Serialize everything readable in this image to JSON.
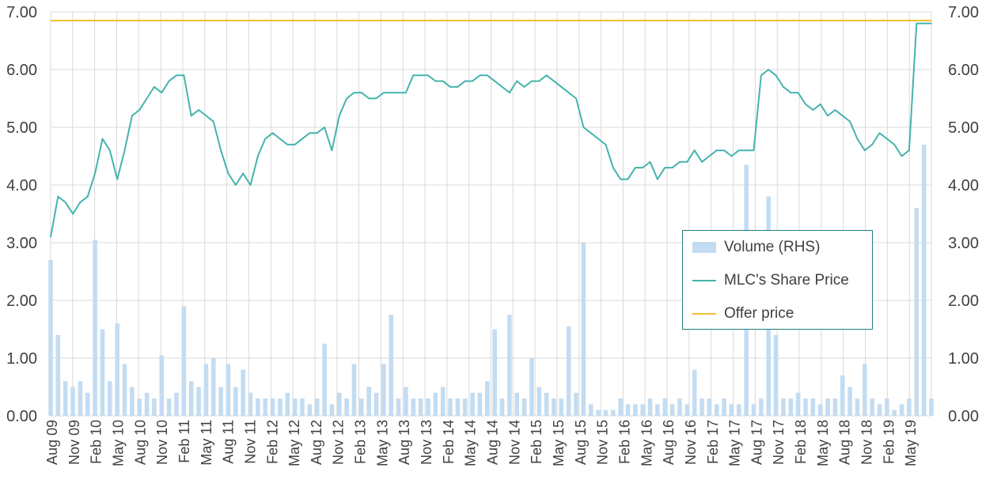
{
  "chart_data": {
    "type": "line",
    "title": "",
    "xlabel": "",
    "ylabel": "",
    "left_axis_ticks": [
      "0.00",
      "1.00",
      "2.00",
      "3.00",
      "4.00",
      "5.00",
      "6.00",
      "7.00"
    ],
    "right_axis_ticks": [
      "0.00",
      "1.00",
      "2.00",
      "3.00",
      "4.00",
      "5.00",
      "6.00",
      "7.00"
    ],
    "ylim": [
      0,
      7
    ],
    "x_tick_labels": [
      "Aug 09",
      "Nov 09",
      "Feb 10",
      "May 10",
      "Aug 10",
      "Nov 10",
      "Feb 11",
      "May 11",
      "Aug 11",
      "Nov 11",
      "Feb 12",
      "May 12",
      "Aug 12",
      "Nov 12",
      "Feb 13",
      "May 13",
      "Aug 13",
      "Nov 13",
      "Feb 14",
      "May 14",
      "Aug 14",
      "Nov 14",
      "Feb 15",
      "May 15",
      "Aug 15",
      "Nov 15",
      "Feb 16",
      "May 16",
      "Aug 16",
      "Nov 16",
      "Feb 17",
      "May 17",
      "Aug 17",
      "Nov 17",
      "Feb 18",
      "May 18",
      "Aug 18",
      "Nov 18",
      "Feb 19",
      "May 19"
    ],
    "grid": true,
    "legend_position": "right",
    "colors": {
      "volume": "#c3dcf2",
      "share_price": "#45b3ad",
      "offer_price": "#f2c12e",
      "grid": "#d9d9d9",
      "legend_border": "#1e7f7f"
    },
    "series": [
      {
        "name": "MLC's Share Price",
        "type": "line",
        "axis": "left",
        "x": [
          "Aug 09",
          "Sep 09",
          "Oct 09",
          "Nov 09",
          "Dec 09",
          "Jan 10",
          "Feb 10",
          "Mar 10",
          "Apr 10",
          "May 10",
          "Jun 10",
          "Jul 10",
          "Aug 10",
          "Sep 10",
          "Oct 10",
          "Nov 10",
          "Dec 10",
          "Jan 11",
          "Feb 11",
          "Mar 11",
          "Apr 11",
          "May 11",
          "Jun 11",
          "Jul 11",
          "Aug 11",
          "Sep 11",
          "Oct 11",
          "Nov 11",
          "Dec 11",
          "Jan 12",
          "Feb 12",
          "Mar 12",
          "Apr 12",
          "May 12",
          "Jun 12",
          "Jul 12",
          "Aug 12",
          "Sep 12",
          "Oct 12",
          "Nov 12",
          "Dec 12",
          "Jan 13",
          "Feb 13",
          "Mar 13",
          "Apr 13",
          "May 13",
          "Jun 13",
          "Jul 13",
          "Aug 13",
          "Sep 13",
          "Oct 13",
          "Nov 13",
          "Dec 13",
          "Jan 14",
          "Feb 14",
          "Mar 14",
          "Apr 14",
          "May 14",
          "Jun 14",
          "Jul 14",
          "Aug 14",
          "Sep 14",
          "Oct 14",
          "Nov 14",
          "Dec 14",
          "Jan 15",
          "Feb 15",
          "Mar 15",
          "Apr 15",
          "May 15",
          "Jun 15",
          "Jul 15",
          "Aug 15",
          "Sep 15",
          "Oct 15",
          "Nov 15",
          "Dec 15",
          "Jan 16",
          "Feb 16",
          "Mar 16",
          "Apr 16",
          "May 16",
          "Jun 16",
          "Jul 16",
          "Aug 16",
          "Sep 16",
          "Oct 16",
          "Nov 16",
          "Dec 16",
          "Jan 17",
          "Feb 17",
          "Mar 17",
          "Apr 17",
          "May 17",
          "Jun 17",
          "Jul 17",
          "Aug 17",
          "Sep 17",
          "Oct 17",
          "Nov 17",
          "Dec 17",
          "Jan 18",
          "Feb 18",
          "Mar 18",
          "Apr 18",
          "May 18",
          "Jun 18",
          "Jul 18",
          "Aug 18",
          "Sep 18",
          "Oct 18",
          "Nov 18",
          "Dec 18",
          "Jan 19",
          "Feb 19",
          "Mar 19",
          "Apr 19",
          "May 19",
          "Jun 19",
          "Jul 19"
        ],
        "values": [
          3.1,
          3.8,
          3.7,
          3.5,
          3.7,
          3.8,
          4.2,
          4.8,
          4.6,
          4.1,
          4.6,
          5.2,
          5.3,
          5.5,
          5.7,
          5.6,
          5.8,
          5.9,
          5.9,
          5.2,
          5.3,
          5.2,
          5.1,
          4.6,
          4.2,
          4.0,
          4.2,
          4.0,
          4.5,
          4.8,
          4.9,
          4.8,
          4.7,
          4.7,
          4.8,
          4.9,
          4.9,
          5.0,
          4.6,
          5.2,
          5.5,
          5.6,
          5.6,
          5.5,
          5.5,
          5.6,
          5.6,
          5.6,
          5.6,
          5.9,
          5.9,
          5.9,
          5.8,
          5.8,
          5.7,
          5.7,
          5.8,
          5.8,
          5.9,
          5.9,
          5.8,
          5.7,
          5.6,
          5.8,
          5.7,
          5.8,
          5.8,
          5.9,
          5.8,
          5.7,
          5.6,
          5.5,
          5.0,
          4.9,
          4.8,
          4.7,
          4.3,
          4.1,
          4.1,
          4.3,
          4.3,
          4.4,
          4.1,
          4.3,
          4.3,
          4.4,
          4.4,
          4.6,
          4.4,
          4.5,
          4.6,
          4.6,
          4.5,
          4.6,
          4.6,
          4.6,
          5.9,
          6.0,
          5.9,
          5.7,
          5.6,
          5.6,
          5.4,
          5.3,
          5.4,
          5.2,
          5.3,
          5.2,
          5.1,
          4.8,
          4.6,
          4.7,
          4.9,
          4.8,
          4.7,
          4.5,
          4.6,
          6.8,
          6.8,
          6.8
        ]
      },
      {
        "name": "Volume (RHS)",
        "type": "bar",
        "axis": "right",
        "x": [
          "Aug 09",
          "Sep 09",
          "Oct 09",
          "Nov 09",
          "Dec 09",
          "Jan 10",
          "Feb 10",
          "Mar 10",
          "Apr 10",
          "May 10",
          "Jun 10",
          "Jul 10",
          "Aug 10",
          "Sep 10",
          "Oct 10",
          "Nov 10",
          "Dec 10",
          "Jan 11",
          "Feb 11",
          "Mar 11",
          "Apr 11",
          "May 11",
          "Jun 11",
          "Jul 11",
          "Aug 11",
          "Sep 11",
          "Oct 11",
          "Nov 11",
          "Dec 11",
          "Jan 12",
          "Feb 12",
          "Mar 12",
          "Apr 12",
          "May 12",
          "Jun 12",
          "Jul 12",
          "Aug 12",
          "Sep 12",
          "Oct 12",
          "Nov 12",
          "Dec 12",
          "Jan 13",
          "Feb 13",
          "Mar 13",
          "Apr 13",
          "May 13",
          "Jun 13",
          "Jul 13",
          "Aug 13",
          "Sep 13",
          "Oct 13",
          "Nov 13",
          "Dec 13",
          "Jan 14",
          "Feb 14",
          "Mar 14",
          "Apr 14",
          "May 14",
          "Jun 14",
          "Jul 14",
          "Aug 14",
          "Sep 14",
          "Oct 14",
          "Nov 14",
          "Dec 14",
          "Jan 15",
          "Feb 15",
          "Mar 15",
          "Apr 15",
          "May 15",
          "Jun 15",
          "Jul 15",
          "Aug 15",
          "Sep 15",
          "Oct 15",
          "Nov 15",
          "Dec 15",
          "Jan 16",
          "Feb 16",
          "Mar 16",
          "Apr 16",
          "May 16",
          "Jun 16",
          "Jul 16",
          "Aug 16",
          "Sep 16",
          "Oct 16",
          "Nov 16",
          "Dec 16",
          "Jan 17",
          "Feb 17",
          "Mar 17",
          "Apr 17",
          "May 17",
          "Jun 17",
          "Jul 17",
          "Aug 17",
          "Sep 17",
          "Oct 17",
          "Nov 17",
          "Dec 17",
          "Jan 18",
          "Feb 18",
          "Mar 18",
          "Apr 18",
          "May 18",
          "Jun 18",
          "Jul 18",
          "Aug 18",
          "Sep 18",
          "Oct 18",
          "Nov 18",
          "Dec 18",
          "Jan 19",
          "Feb 19",
          "Mar 19",
          "Apr 19",
          "May 19",
          "Jun 19",
          "Jul 19"
        ],
        "values": [
          2.7,
          1.4,
          0.6,
          0.5,
          0.6,
          0.4,
          3.05,
          1.5,
          0.6,
          1.6,
          0.9,
          0.5,
          0.3,
          0.4,
          0.3,
          1.05,
          0.3,
          0.4,
          1.9,
          0.6,
          0.5,
          0.9,
          1.0,
          0.5,
          0.9,
          0.5,
          0.8,
          0.4,
          0.3,
          0.3,
          0.3,
          0.3,
          0.4,
          0.3,
          0.3,
          0.2,
          0.3,
          1.25,
          0.2,
          0.4,
          0.3,
          0.9,
          0.3,
          0.5,
          0.4,
          0.9,
          1.75,
          0.3,
          0.5,
          0.3,
          0.3,
          0.3,
          0.4,
          0.5,
          0.3,
          0.3,
          0.3,
          0.4,
          0.4,
          0.6,
          1.5,
          0.3,
          1.75,
          0.4,
          0.3,
          1.0,
          0.5,
          0.4,
          0.3,
          0.3,
          1.55,
          0.4,
          3.0,
          0.2,
          0.1,
          0.1,
          0.1,
          0.3,
          0.2,
          0.2,
          0.2,
          0.3,
          0.2,
          0.3,
          0.2,
          0.3,
          0.2,
          0.8,
          0.3,
          0.3,
          0.2,
          0.3,
          0.2,
          0.2,
          4.35,
          0.2,
          0.3,
          3.8,
          1.4,
          0.3,
          0.3,
          0.4,
          0.3,
          0.3,
          0.2,
          0.3,
          0.3,
          0.7,
          0.5,
          0.3,
          0.9,
          0.3,
          0.2,
          0.3,
          0.1,
          0.2,
          0.3,
          3.6,
          4.7,
          0.3
        ]
      },
      {
        "name": "Offer price",
        "type": "line",
        "axis": "left",
        "value": 6.85
      }
    ]
  }
}
